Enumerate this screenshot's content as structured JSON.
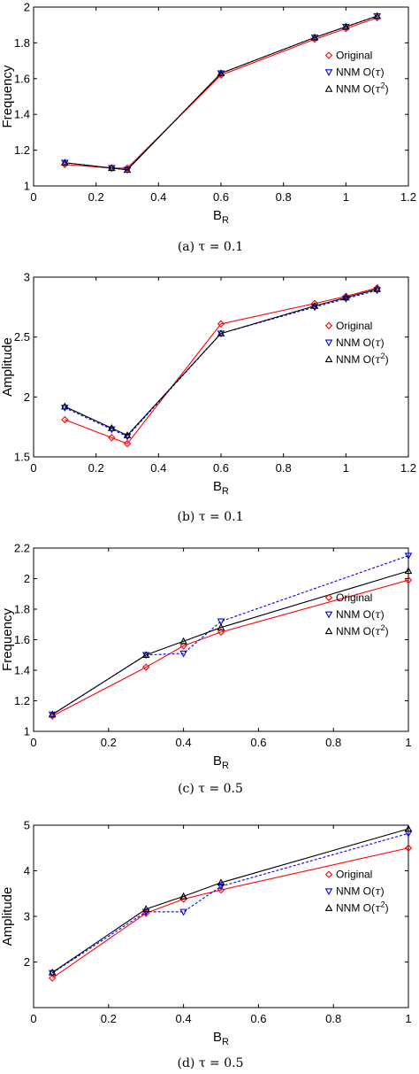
{
  "chart_data": [
    {
      "type": "line",
      "caption": "(a) τ = 0.1",
      "xlabel": "B",
      "xlabel_sub": "R",
      "ylabel": "Frequency",
      "xlim": [
        0,
        1.2
      ],
      "ylim": [
        1,
        2
      ],
      "xticks": [
        0,
        0.2,
        0.4,
        0.6,
        0.8,
        1,
        1.2
      ],
      "xtick_labels": [
        "0",
        "0.2",
        "0.4",
        "0.6",
        "0.8",
        "1",
        "1.2"
      ],
      "yticks": [
        1,
        1.2,
        1.4,
        1.6,
        1.8,
        2
      ],
      "ytick_labels": [
        "1",
        "1.2",
        "1.4",
        "1.6",
        "1.8",
        "2"
      ],
      "legend_position": "right",
      "x": [
        0.1,
        0.25,
        0.3,
        0.6,
        0.9,
        1.0,
        1.1
      ],
      "series": [
        {
          "name": "Original",
          "values": [
            1.12,
            1.1,
            1.1,
            1.62,
            1.82,
            1.88,
            1.94
          ]
        },
        {
          "name": "NNM O(τ)",
          "values": [
            1.13,
            1.1,
            1.09,
            1.63,
            1.83,
            1.89,
            1.95
          ]
        },
        {
          "name": "NNM O(τ²)",
          "values": [
            1.13,
            1.1,
            1.09,
            1.63,
            1.83,
            1.89,
            1.95
          ]
        }
      ]
    },
    {
      "type": "line",
      "caption": "(b) τ = 0.1",
      "xlabel": "B",
      "xlabel_sub": "R",
      "ylabel": "Amplitude",
      "xlim": [
        0,
        1.2
      ],
      "ylim": [
        1.5,
        3
      ],
      "xticks": [
        0,
        0.2,
        0.4,
        0.6,
        0.8,
        1,
        1.2
      ],
      "xtick_labels": [
        "0",
        "0.2",
        "0.4",
        "0.6",
        "0.8",
        "1",
        "1.2"
      ],
      "yticks": [
        1.5,
        2,
        2.5,
        3
      ],
      "ytick_labels": [
        "1.5",
        "2",
        "2.5",
        "3"
      ],
      "legend_position": "right",
      "x": [
        0.1,
        0.25,
        0.3,
        0.6,
        0.9,
        1.0,
        1.1
      ],
      "series": [
        {
          "name": "Original",
          "values": [
            1.81,
            1.66,
            1.61,
            2.61,
            2.78,
            2.84,
            2.91
          ]
        },
        {
          "name": "NNM O(τ)",
          "values": [
            1.91,
            1.73,
            1.67,
            2.53,
            2.75,
            2.82,
            2.89
          ]
        },
        {
          "name": "NNM O(τ²)",
          "values": [
            1.92,
            1.74,
            1.68,
            2.53,
            2.76,
            2.83,
            2.9
          ]
        }
      ]
    },
    {
      "type": "line",
      "caption": "(c) τ = 0.5",
      "xlabel": "B",
      "xlabel_sub": "R",
      "ylabel": "Frequency",
      "xlim": [
        0,
        1
      ],
      "ylim": [
        1,
        2.2
      ],
      "xticks": [
        0,
        0.2,
        0.4,
        0.6,
        0.8,
        1
      ],
      "xtick_labels": [
        "0",
        "0.2",
        "0.4",
        "0.6",
        "0.8",
        "1"
      ],
      "yticks": [
        1,
        1.2,
        1.4,
        1.6,
        1.8,
        2,
        2.2
      ],
      "ytick_labels": [
        "1",
        "1.2",
        "1.4",
        "1.6",
        "1.8",
        "2",
        "2.2"
      ],
      "legend_position": "right",
      "x": [
        0.05,
        0.3,
        0.4,
        0.5,
        1.0
      ],
      "series": [
        {
          "name": "Original",
          "values": [
            1.1,
            1.42,
            1.56,
            1.65,
            1.99
          ]
        },
        {
          "name": "NNM O(τ)",
          "values": [
            1.11,
            1.5,
            1.51,
            1.72,
            2.15
          ]
        },
        {
          "name": "NNM O(τ²)",
          "values": [
            1.11,
            1.5,
            1.59,
            1.68,
            2.05
          ]
        }
      ]
    },
    {
      "type": "line",
      "caption": "(d) τ = 0.5",
      "xlabel": "B",
      "xlabel_sub": "R",
      "ylabel": "Amplitude",
      "xlim": [
        0,
        1
      ],
      "ylim": [
        1,
        5
      ],
      "xticks": [
        0,
        0.2,
        0.4,
        0.6,
        0.8,
        1
      ],
      "xtick_labels": [
        "0",
        "0.2",
        "0.4",
        "0.6",
        "0.8",
        "1"
      ],
      "yticks": [
        2,
        3,
        4,
        5
      ],
      "ytick_labels": [
        "2",
        "3",
        "4",
        "5"
      ],
      "legend_position": "right",
      "x": [
        0.05,
        0.3,
        0.4,
        0.5,
        1.0
      ],
      "series": [
        {
          "name": "Original",
          "values": [
            1.65,
            3.07,
            3.38,
            3.58,
            4.5
          ]
        },
        {
          "name": "NNM O(τ)",
          "values": [
            1.76,
            3.1,
            3.1,
            3.66,
            4.82
          ]
        },
        {
          "name": "NNM O(τ²)",
          "values": [
            1.77,
            3.16,
            3.44,
            3.74,
            4.92
          ]
        }
      ]
    }
  ],
  "styles": {
    "series_colors": [
      "#ff0000",
      "#0000ff",
      "#000000"
    ],
    "series_markers": [
      "diamond",
      "triangle-down",
      "triangle-up"
    ],
    "series_dashed": [
      false,
      true,
      false
    ],
    "legend_labels": [
      {
        "text": "Original"
      },
      {
        "text": "NNM O(",
        "greek": "τ",
        "tail": ")"
      },
      {
        "text": "NNM O(",
        "greek": "τ",
        "sup": "2",
        "tail": ")"
      }
    ]
  }
}
